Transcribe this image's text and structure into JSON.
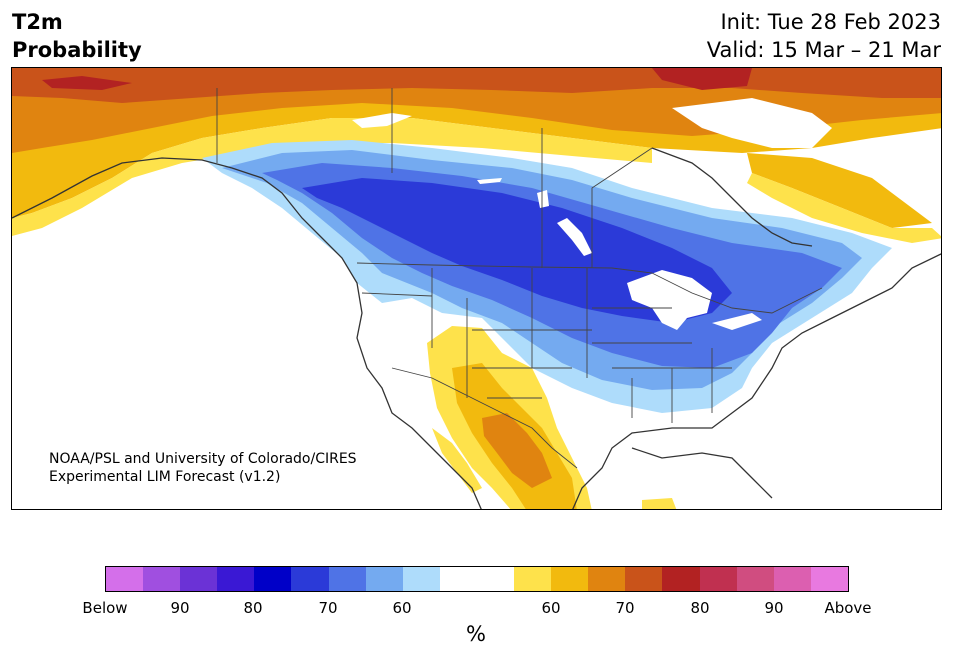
{
  "header": {
    "variable": "T2m",
    "subtitle": "Probability",
    "init": "Init: Tue 28 Feb 2023",
    "valid": "Valid: 15 Mar – 21 Mar"
  },
  "credit": {
    "line1": "NOAA/PSL and University of Colorado/CIRES",
    "line2": "Experimental LIM Forecast (v1.2)"
  },
  "colorbar": {
    "unit": "%",
    "colors": [
      "#d46fea",
      "#a04fe0",
      "#6b32d6",
      "#3a18d4",
      "#0000c8",
      "#2b3ad8",
      "#4f73e6",
      "#74aaf0",
      "#aedcfb",
      "#ffffff",
      "#ffffff",
      "#fee24b",
      "#f2ba0e",
      "#e08410",
      "#c9531a",
      "#b22222",
      "#c03050",
      "#d04d80",
      "#dc5fb0",
      "#e879e0"
    ],
    "labels": [
      "Below",
      "90",
      "80",
      "70",
      "60",
      "60",
      "70",
      "80",
      "90",
      "Above"
    ]
  },
  "map": {
    "legend_meaning": "Probability of below (blue) / above (orange-red) normal 2m temperature",
    "colors": {
      "blue_light": "#aedcfb",
      "blue_mid": "#74aaf0",
      "blue_med": "#4f73e6",
      "blue_dark": "#2b3ad8",
      "yellow": "#fee24b",
      "gold": "#f2ba0e",
      "orange": "#e08410",
      "dark_orange": "#c9531a",
      "red": "#b22222"
    }
  }
}
